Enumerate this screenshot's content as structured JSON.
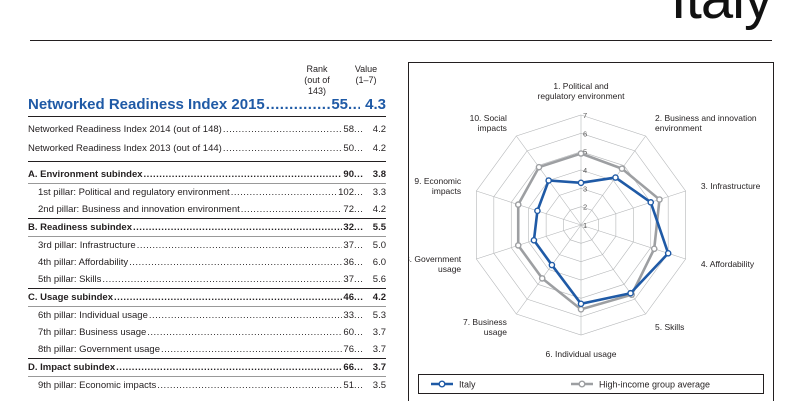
{
  "country": "Italy",
  "table": {
    "header": {
      "rank": "Rank",
      "rank_sub": "(out of 143)",
      "value": "Value",
      "value_sub": "(1–7)"
    },
    "main": {
      "label": "Networked Readiness Index 2015",
      "rank": "55",
      "value": "4.3"
    },
    "history": [
      {
        "label": "Networked Readiness Index 2014 (out of 148)",
        "rank": "58",
        "value": "4.2"
      },
      {
        "label": "Networked Readiness Index 2013 (out of 144)",
        "rank": "50",
        "value": "4.2"
      }
    ],
    "rows": [
      {
        "kind": "sub",
        "label": "A. Environment subindex",
        "rank": "90",
        "value": "3.8"
      },
      {
        "kind": "pillar",
        "label": "1st pillar: Political and regulatory environment",
        "rank": "102",
        "value": "3.3"
      },
      {
        "kind": "pillar",
        "label": "2nd pillar: Business and innovation environment",
        "rank": "72",
        "value": "4.2"
      },
      {
        "kind": "sub",
        "label": "B. Readiness subindex",
        "rank": "32",
        "value": "5.5"
      },
      {
        "kind": "pillar",
        "label": "3rd pillar: Infrastructure",
        "rank": "37",
        "value": "5.0"
      },
      {
        "kind": "pillar",
        "label": "4th pillar: Affordability",
        "rank": "36",
        "value": "6.0"
      },
      {
        "kind": "pillar",
        "label": "5th pillar: Skills",
        "rank": "37",
        "value": "5.6"
      },
      {
        "kind": "sub",
        "label": "C. Usage subindex",
        "rank": "46",
        "value": "4.2"
      },
      {
        "kind": "pillar",
        "label": "6th pillar: Individual usage",
        "rank": "33",
        "value": "5.3"
      },
      {
        "kind": "pillar",
        "label": "7th pillar: Business usage",
        "rank": "60",
        "value": "3.7"
      },
      {
        "kind": "pillar",
        "label": "8th pillar: Government usage",
        "rank": "76",
        "value": "3.7"
      },
      {
        "kind": "sub",
        "label": "D. Impact subindex",
        "rank": "66",
        "value": "3.7"
      },
      {
        "kind": "pillar",
        "label": "9th pillar: Economic impacts",
        "rank": "51",
        "value": "3.5"
      }
    ]
  },
  "chart_data": {
    "type": "radar",
    "axis_range": [
      1,
      7
    ],
    "ticks": [
      "1",
      "2",
      "3",
      "4",
      "5",
      "6",
      "7"
    ],
    "categories": [
      [
        "1. Political and",
        "regulatory environment"
      ],
      [
        "2. Business and innovation",
        "environment"
      ],
      [
        "3. Infrastructure"
      ],
      [
        "4. Affordability"
      ],
      [
        "5. Skills"
      ],
      [
        "6. Individual usage"
      ],
      [
        "7. Business",
        "usage"
      ],
      [
        "8. Government",
        "usage"
      ],
      [
        "9. Economic",
        "impacts"
      ],
      [
        "10. Social",
        "impacts"
      ]
    ],
    "series": [
      {
        "name": "Italy",
        "color": "#1f5aa6",
        "values": [
          3.3,
          4.2,
          5.0,
          6.0,
          5.6,
          5.3,
          3.7,
          3.7,
          3.5,
          4.0
        ]
      },
      {
        "name": "High-income group average",
        "color": "#9d9fa2",
        "values": [
          4.9,
          4.8,
          5.5,
          5.2,
          5.7,
          5.6,
          4.6,
          4.6,
          4.6,
          4.9
        ]
      }
    ],
    "legend_position": "bottom",
    "grid": true
  }
}
